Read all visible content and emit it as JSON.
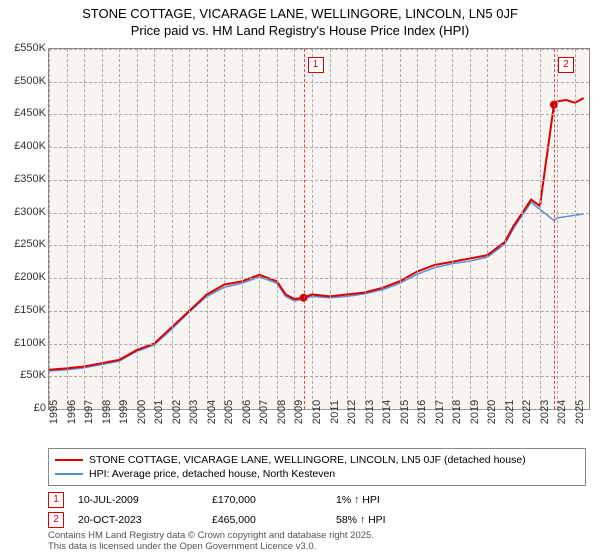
{
  "title_line1": "STONE COTTAGE, VICARAGE LANE, WELLINGORE, LINCOLN, LN5 0JF",
  "title_line2": "Price paid vs. HM Land Registry's House Price Index (HPI)",
  "chart": {
    "type": "line",
    "background_color": "#f7f4f2",
    "grid_color": "#aaaaaa",
    "border_color": "#888888",
    "ylim": [
      0,
      550000
    ],
    "ytick_step": 50000,
    "yticks": [
      "£0",
      "£50K",
      "£100K",
      "£150K",
      "£200K",
      "£250K",
      "£300K",
      "£350K",
      "£400K",
      "£450K",
      "£500K",
      "£550K"
    ],
    "xlim": [
      1995,
      2025.8
    ],
    "xticks": [
      "1995",
      "1996",
      "1997",
      "1998",
      "1999",
      "2000",
      "2001",
      "2002",
      "2003",
      "2004",
      "2005",
      "2006",
      "2007",
      "2008",
      "2009",
      "2010",
      "2011",
      "2012",
      "2013",
      "2014",
      "2015",
      "2016",
      "2017",
      "2018",
      "2019",
      "2020",
      "2021",
      "2022",
      "2023",
      "2024",
      "2025"
    ],
    "series": [
      {
        "name": "red",
        "color": "#db0000",
        "width": 2,
        "xs": [
          1995,
          1996,
          1997,
          1998,
          1999,
          2000,
          2001,
          2002,
          2003,
          2004,
          2005,
          2006,
          2007,
          2008,
          2008.5,
          2009,
          2009.5,
          2010,
          2011,
          2012,
          2013,
          2014,
          2015,
          2016,
          2017,
          2018,
          2019,
          2020,
          2021,
          2021.5,
          2022,
          2022.5,
          2023,
          2023.8,
          2024,
          2024.5,
          2025,
          2025.5
        ],
        "ys": [
          60000,
          62000,
          65000,
          70000,
          75000,
          90000,
          100000,
          125000,
          150000,
          175000,
          190000,
          195000,
          205000,
          195000,
          175000,
          168000,
          170000,
          175000,
          172000,
          175000,
          178000,
          185000,
          195000,
          210000,
          220000,
          225000,
          230000,
          235000,
          255000,
          280000,
          300000,
          320000,
          310000,
          465000,
          470000,
          472000,
          468000,
          475000
        ]
      },
      {
        "name": "blue",
        "color": "#5a8bd6",
        "width": 1.5,
        "xs": [
          1995,
          1996,
          1997,
          1998,
          1999,
          2000,
          2001,
          2002,
          2003,
          2004,
          2005,
          2006,
          2007,
          2008,
          2008.5,
          2009,
          2009.5,
          2010,
          2011,
          2012,
          2013,
          2014,
          2015,
          2016,
          2017,
          2018,
          2019,
          2020,
          2021,
          2021.5,
          2022,
          2022.5,
          2023,
          2023.8,
          2024,
          2024.5,
          2025,
          2025.5
        ],
        "ys": [
          58000,
          60000,
          63000,
          68000,
          73000,
          88000,
          98000,
          122000,
          148000,
          172000,
          186000,
          192000,
          202000,
          192000,
          172000,
          165000,
          168000,
          172000,
          170000,
          172000,
          176000,
          182000,
          192000,
          206000,
          216000,
          222000,
          226000,
          232000,
          252000,
          276000,
          296000,
          316000,
          305000,
          288000,
          292000,
          294000,
          296000,
          298000
        ]
      }
    ],
    "sale_markers": [
      {
        "label": "1",
        "x": 2009.52,
        "y": 170000
      },
      {
        "label": "2",
        "x": 2023.8,
        "y": 465000
      }
    ],
    "markerbox_top_y": 8,
    "sale_point_color": "#d00000",
    "sale_point_radius": 4
  },
  "legend": {
    "items": [
      {
        "color": "#db0000",
        "width": 2,
        "label": "STONE COTTAGE, VICARAGE LANE, WELLINGORE, LINCOLN, LN5 0JF (detached house)"
      },
      {
        "color": "#5a8bd6",
        "width": 1.5,
        "label": "HPI: Average price, detached house, North Kesteven"
      }
    ]
  },
  "sales": [
    {
      "n": "1",
      "date": "10-JUL-2009",
      "price": "£170,000",
      "pct": "1% ↑ HPI"
    },
    {
      "n": "2",
      "date": "20-OCT-2023",
      "price": "£465,000",
      "pct": "58% ↑ HPI"
    }
  ],
  "footer_line1": "Contains HM Land Registry data © Crown copyright and database right 2025.",
  "footer_line2": "This data is licensed under the Open Government Licence v3.0."
}
